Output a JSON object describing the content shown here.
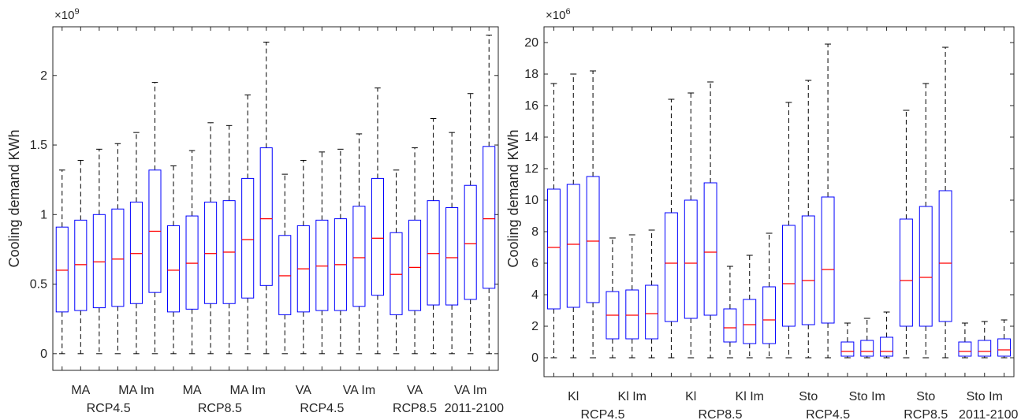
{
  "chart_data": [
    {
      "type": "box",
      "ylabel": "Cooling demand KWh",
      "exponent_label": "×10^9",
      "ylim": [
        -0.12,
        2.35
      ],
      "yticks": [
        0,
        0.5,
        1,
        1.5,
        2
      ],
      "ytick_labels": [
        "0",
        "0.5",
        "1",
        "1.5",
        "2"
      ],
      "colors": {
        "box": "#0000ff",
        "median": "#ff0000",
        "whisker": "#000000",
        "axis": "#262626"
      },
      "xtick_labels_row1": [
        {
          "label": "MA",
          "at": 2
        },
        {
          "label": "MA Im",
          "at": 5
        },
        {
          "label": "MA",
          "at": 8
        },
        {
          "label": "MA Im",
          "at": 11
        },
        {
          "label": "VA",
          "at": 14
        },
        {
          "label": "VA Im",
          "at": 17
        },
        {
          "label": "VA",
          "at": 20
        },
        {
          "label": "VA Im",
          "at": 23
        }
      ],
      "xtick_labels_row2": [
        {
          "label": "RCP4.5",
          "at": 3.5
        },
        {
          "label": "RCP8.5",
          "at": 9.5
        },
        {
          "label": "RCP4.5",
          "at": 15
        },
        {
          "label": "RCP8.5",
          "at": 20
        },
        {
          "label": "2011-2100",
          "at": 23.2
        }
      ],
      "boxes": [
        {
          "min": 0,
          "q1": 0.3,
          "median": 0.6,
          "q3": 0.91,
          "max": 1.32
        },
        {
          "min": 0,
          "q1": 0.31,
          "median": 0.64,
          "q3": 0.96,
          "max": 1.39
        },
        {
          "min": 0,
          "q1": 0.33,
          "median": 0.66,
          "q3": 1.0,
          "max": 1.47
        },
        {
          "min": 0,
          "q1": 0.34,
          "median": 0.68,
          "q3": 1.04,
          "max": 1.51
        },
        {
          "min": 0,
          "q1": 0.36,
          "median": 0.72,
          "q3": 1.09,
          "max": 1.59
        },
        {
          "min": 0,
          "q1": 0.44,
          "median": 0.88,
          "q3": 1.32,
          "max": 1.95
        },
        {
          "min": 0,
          "q1": 0.3,
          "median": 0.6,
          "q3": 0.92,
          "max": 1.35
        },
        {
          "min": 0,
          "q1": 0.32,
          "median": 0.65,
          "q3": 0.99,
          "max": 1.46
        },
        {
          "min": 0,
          "q1": 0.36,
          "median": 0.72,
          "q3": 1.09,
          "max": 1.66
        },
        {
          "min": 0,
          "q1": 0.36,
          "median": 0.73,
          "q3": 1.1,
          "max": 1.64
        },
        {
          "min": 0,
          "q1": 0.4,
          "median": 0.82,
          "q3": 1.26,
          "max": 1.86
        },
        {
          "min": 0,
          "q1": 0.49,
          "median": 0.97,
          "q3": 1.48,
          "max": 2.24
        },
        {
          "min": 0,
          "q1": 0.28,
          "median": 0.56,
          "q3": 0.85,
          "max": 1.29
        },
        {
          "min": 0,
          "q1": 0.3,
          "median": 0.61,
          "q3": 0.92,
          "max": 1.39
        },
        {
          "min": 0,
          "q1": 0.31,
          "median": 0.63,
          "q3": 0.96,
          "max": 1.45
        },
        {
          "min": 0,
          "q1": 0.31,
          "median": 0.64,
          "q3": 0.97,
          "max": 1.47
        },
        {
          "min": 0,
          "q1": 0.34,
          "median": 0.69,
          "q3": 1.06,
          "max": 1.58
        },
        {
          "min": 0,
          "q1": 0.42,
          "median": 0.83,
          "q3": 1.26,
          "max": 1.91
        },
        {
          "min": 0,
          "q1": 0.28,
          "median": 0.57,
          "q3": 0.87,
          "max": 1.32
        },
        {
          "min": 0,
          "q1": 0.31,
          "median": 0.62,
          "q3": 0.96,
          "max": 1.48
        },
        {
          "min": 0,
          "q1": 0.35,
          "median": 0.72,
          "q3": 1.1,
          "max": 1.69
        },
        {
          "min": 0,
          "q1": 0.35,
          "median": 0.69,
          "q3": 1.05,
          "max": 1.59
        },
        {
          "min": 0,
          "q1": 0.39,
          "median": 0.79,
          "q3": 1.21,
          "max": 1.87
        },
        {
          "min": 0,
          "q1": 0.47,
          "median": 0.97,
          "q3": 1.49,
          "max": 2.29
        }
      ]
    },
    {
      "type": "box",
      "ylabel": "Cooling demand KWh",
      "exponent_label": "×10^6",
      "ylim": [
        -1.2,
        21
      ],
      "yticks": [
        0,
        2,
        4,
        6,
        8,
        10,
        12,
        14,
        16,
        18,
        20
      ],
      "ytick_labels": [
        "0",
        "2",
        "4",
        "6",
        "8",
        "10",
        "12",
        "14",
        "16",
        "18",
        "20"
      ],
      "colors": {
        "box": "#0000ff",
        "median": "#ff0000",
        "whisker": "#000000",
        "axis": "#262626"
      },
      "xtick_labels_row1": [
        {
          "label": "Kl",
          "at": 2
        },
        {
          "label": "Kl Im",
          "at": 5
        },
        {
          "label": "Kl",
          "at": 8
        },
        {
          "label": "Kl Im",
          "at": 11
        },
        {
          "label": "Sto",
          "at": 14
        },
        {
          "label": "Sto Im",
          "at": 17
        },
        {
          "label": "Sto",
          "at": 20
        },
        {
          "label": "Sto Im",
          "at": 23
        }
      ],
      "xtick_labels_row2": [
        {
          "label": "RCP4.5",
          "at": 3.5
        },
        {
          "label": "RCP8.5",
          "at": 9.5
        },
        {
          "label": "RCP4.5",
          "at": 15
        },
        {
          "label": "RCP8.5",
          "at": 20
        },
        {
          "label": "2011-2100",
          "at": 23.2
        }
      ],
      "boxes": [
        {
          "min": 0,
          "q1": 3.1,
          "median": 7.0,
          "q3": 10.7,
          "max": 17.4
        },
        {
          "min": 0,
          "q1": 3.2,
          "median": 7.2,
          "q3": 11.0,
          "max": 18.0
        },
        {
          "min": 0,
          "q1": 3.5,
          "median": 7.4,
          "q3": 11.5,
          "max": 18.2
        },
        {
          "min": 0,
          "q1": 1.2,
          "median": 2.7,
          "q3": 4.2,
          "max": 7.6
        },
        {
          "min": 0,
          "q1": 1.2,
          "median": 2.7,
          "q3": 4.3,
          "max": 7.8
        },
        {
          "min": 0,
          "q1": 1.2,
          "median": 2.8,
          "q3": 4.6,
          "max": 8.1
        },
        {
          "min": 0,
          "q1": 2.3,
          "median": 6.0,
          "q3": 9.2,
          "max": 16.4
        },
        {
          "min": 0,
          "q1": 2.5,
          "median": 6.0,
          "q3": 10.0,
          "max": 16.8
        },
        {
          "min": 0,
          "q1": 2.7,
          "median": 6.7,
          "q3": 11.1,
          "max": 17.5
        },
        {
          "min": 0,
          "q1": 1.0,
          "median": 1.9,
          "q3": 3.1,
          "max": 5.8
        },
        {
          "min": 0,
          "q1": 0.9,
          "median": 2.1,
          "q3": 3.7,
          "max": 6.5
        },
        {
          "min": 0,
          "q1": 0.9,
          "median": 2.4,
          "q3": 4.5,
          "max": 7.9
        },
        {
          "min": 0,
          "q1": 2.0,
          "median": 4.7,
          "q3": 8.4,
          "max": 16.2
        },
        {
          "min": 0,
          "q1": 2.1,
          "median": 4.9,
          "q3": 9.0,
          "max": 17.6
        },
        {
          "min": 0,
          "q1": 2.2,
          "median": 5.6,
          "q3": 10.2,
          "max": 19.9
        },
        {
          "min": 0,
          "q1": 0.1,
          "median": 0.4,
          "q3": 1.0,
          "max": 2.2
        },
        {
          "min": 0,
          "q1": 0.1,
          "median": 0.4,
          "q3": 1.1,
          "max": 2.5
        },
        {
          "min": 0,
          "q1": 0.1,
          "median": 0.4,
          "q3": 1.3,
          "max": 2.9
        },
        {
          "min": 0,
          "q1": 2.0,
          "median": 4.9,
          "q3": 8.8,
          "max": 15.7
        },
        {
          "min": 0,
          "q1": 2.0,
          "median": 5.1,
          "q3": 9.6,
          "max": 17.4
        },
        {
          "min": 0,
          "q1": 2.3,
          "median": 6.0,
          "q3": 10.6,
          "max": 19.7
        },
        {
          "min": 0,
          "q1": 0.1,
          "median": 0.4,
          "q3": 1.0,
          "max": 2.2
        },
        {
          "min": 0,
          "q1": 0.1,
          "median": 0.4,
          "q3": 1.1,
          "max": 2.3
        },
        {
          "min": 0,
          "q1": 0.1,
          "median": 0.5,
          "q3": 1.2,
          "max": 2.4
        }
      ]
    }
  ]
}
